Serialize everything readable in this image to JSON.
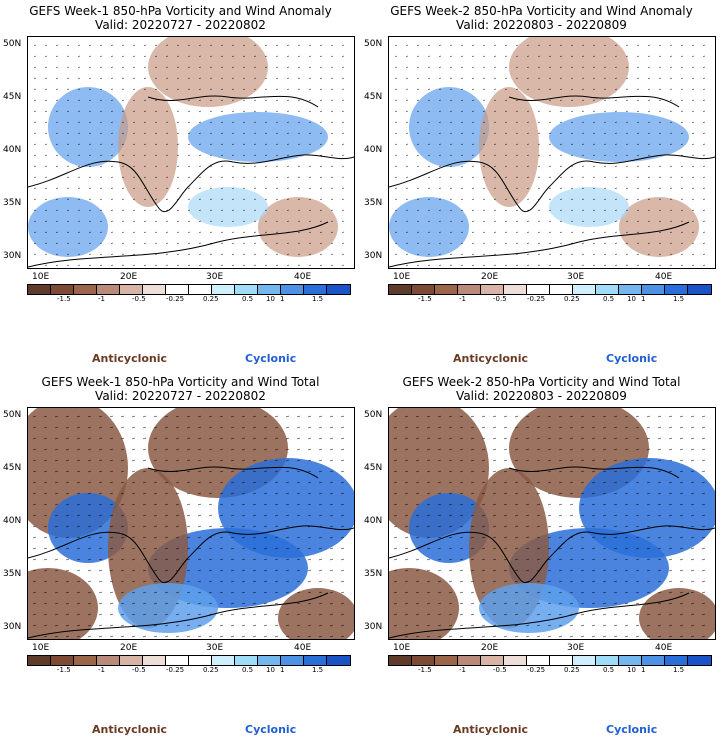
{
  "panels": [
    {
      "title": "GEFS Week-1 850-hPa Vorticity and Wind Anomaly",
      "valid": "Valid: 20220727 - 20220802",
      "kind": "anomaly"
    },
    {
      "title": "GEFS Week-2 850-hPa Vorticity and Wind Anomaly",
      "valid": "Valid: 20220803 - 20220809",
      "kind": "anomaly"
    },
    {
      "title": "GEFS Week-1 850-hPa Vorticity and Wind Total",
      "valid": "Valid: 20220727 - 20220802",
      "kind": "total"
    },
    {
      "title": "GEFS Week-2 850-hPa Vorticity and Wind Total",
      "valid": "Valid: 20220803 - 20220809",
      "kind": "total"
    }
  ],
  "lat_labels": [
    "50N",
    "45N",
    "40N",
    "35N",
    "30N"
  ],
  "lon_labels": [
    "10E",
    "20E",
    "30E",
    "40E"
  ],
  "colorbar": {
    "labels": [
      "-1.5",
      "-1",
      "-0.5",
      "-0.25",
      "0.25",
      "0.5",
      "1",
      "1.5"
    ],
    "scale_note": "10",
    "colors": [
      "#5e3b2b",
      "#7d4a35",
      "#9b6549",
      "#b9897a",
      "#d7b4a6",
      "#eeded8",
      "#ffffff",
      "#ffffff",
      "#cfeffc",
      "#9fdcf8",
      "#74b7ee",
      "#4e92e6",
      "#2a6fd9",
      "#1a52c8"
    ]
  },
  "legend": {
    "anticyclonic": "Anticyclonic",
    "cyclonic": "Cyclonic"
  },
  "colors": {
    "anticyclonic": "#6b3a22",
    "cyclonic": "#1f5fd6"
  }
}
